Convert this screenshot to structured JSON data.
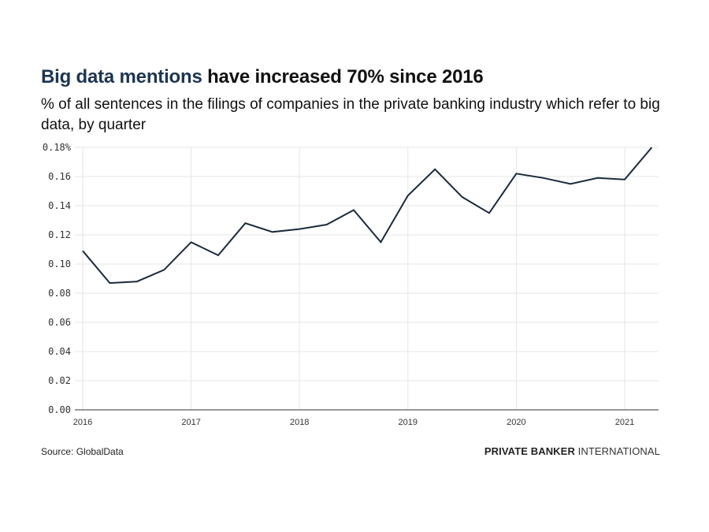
{
  "header": {
    "title_highlight": "Big data mentions",
    "title_rest": " have increased 70% since 2016",
    "subtitle": "% of all sentences in the filings of companies in the private banking industry which refer to big data, by quarter"
  },
  "footer": {
    "source": "Source: GlobalData",
    "brand_bold": "PRIVATE BANKER",
    "brand_light": " INTERNATIONAL"
  },
  "colors": {
    "highlight": "#1e3550",
    "line": "#1b2a3c",
    "grid": "#e6e6e6",
    "axis": "#333333"
  },
  "chart_data": {
    "type": "line",
    "title": "Big data mentions have increased 70% since 2016",
    "subtitle": "% of all sentences in the filings of companies in the private banking industry which refer to big data, by quarter",
    "xlabel": "",
    "ylabel": "",
    "x": [
      "2016 Q1",
      "2016 Q2",
      "2016 Q3",
      "2016 Q4",
      "2017 Q1",
      "2017 Q2",
      "2017 Q3",
      "2017 Q4",
      "2018 Q1",
      "2018 Q2",
      "2018 Q3",
      "2018 Q4",
      "2019 Q1",
      "2019 Q2",
      "2019 Q3",
      "2019 Q4",
      "2020 Q1",
      "2020 Q2",
      "2020 Q3",
      "2020 Q4",
      "2021 Q1",
      "2021 Q2"
    ],
    "series": [
      {
        "name": "Big data mentions (%)",
        "values": [
          0.109,
          0.087,
          0.088,
          0.096,
          0.115,
          0.106,
          0.128,
          0.122,
          0.124,
          0.127,
          0.137,
          0.115,
          0.147,
          0.165,
          0.146,
          0.135,
          0.162,
          0.159,
          0.155,
          0.159,
          0.158,
          0.18
        ]
      }
    ],
    "x_tick_labels": [
      "2016",
      "2017",
      "2018",
      "2019",
      "2020",
      "2021"
    ],
    "y_tick_labels": [
      "0.00",
      "0.02",
      "0.04",
      "0.06",
      "0.08",
      "0.10",
      "0.12",
      "0.14",
      "0.16",
      "0.18%"
    ],
    "y_ticks": [
      0,
      0.02,
      0.04,
      0.06,
      0.08,
      0.1,
      0.12,
      0.14,
      0.16,
      0.18
    ],
    "ylim": [
      0,
      0.18
    ],
    "grid": true,
    "legend": "none"
  }
}
